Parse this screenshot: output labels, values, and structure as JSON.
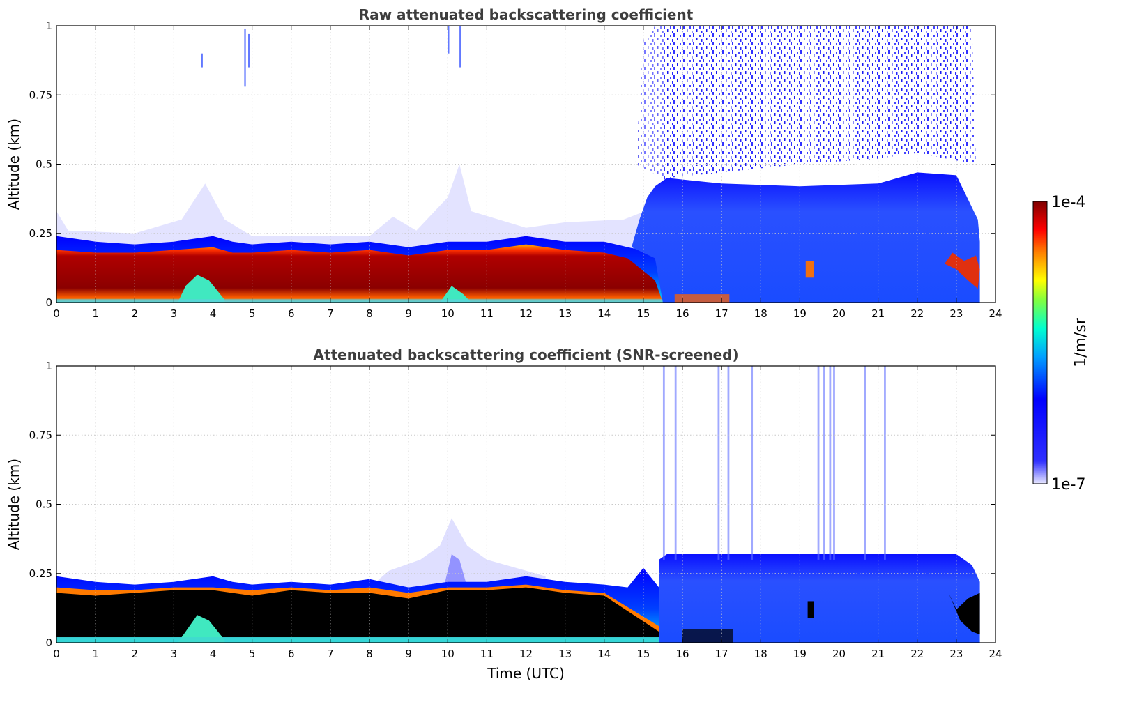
{
  "chart_data": [
    {
      "type": "heatmap",
      "title": "Raw attenuated backscattering coefficient",
      "xlabel": "",
      "ylabel": "Altitude (km)",
      "xlim": [
        0,
        24
      ],
      "ylim": [
        0,
        1
      ],
      "x_ticks": [
        "0",
        "1",
        "2",
        "3",
        "4",
        "5",
        "6",
        "7",
        "8",
        "9",
        "10",
        "11",
        "12",
        "13",
        "14",
        "15",
        "16",
        "17",
        "18",
        "19",
        "20",
        "21",
        "22",
        "23",
        "24"
      ],
      "y_ticks": [
        "0",
        "0.25",
        "0.5",
        "0.75",
        "1"
      ],
      "grid": true,
      "colorscale": "jet",
      "approximate_layers": [
        {
          "from_h": 0,
          "to_h": 15.5,
          "altitude_km": [
            0.0,
            0.18
          ],
          "level": "high (dark red / red)"
        },
        {
          "from_h": 0,
          "to_h": 15.5,
          "altitude_km": [
            0.18,
            0.23
          ],
          "level": "medium (blue / cyan)"
        },
        {
          "from_h": 15.5,
          "to_h": 23.6,
          "altitude_km": [
            0.0,
            0.45
          ],
          "level": "low (blue)"
        },
        {
          "from_h": 15.5,
          "to_h": 23.6,
          "altitude_km": [
            0.45,
            1.0
          ],
          "level": "noise (sparse blue)"
        },
        {
          "from_h": 22.7,
          "to_h": 23.6,
          "altitude_km": [
            0.05,
            0.18
          ],
          "level": "high (red / orange)"
        }
      ]
    },
    {
      "type": "heatmap",
      "title": "Attenuated backscattering coefficient (SNR-screened)",
      "xlabel": "Time (UTC)",
      "ylabel": "Altitude (km)",
      "xlim": [
        0,
        24
      ],
      "ylim": [
        0,
        1
      ],
      "x_ticks": [
        "0",
        "1",
        "2",
        "3",
        "4",
        "5",
        "6",
        "7",
        "8",
        "9",
        "10",
        "11",
        "12",
        "13",
        "14",
        "15",
        "16",
        "17",
        "18",
        "19",
        "20",
        "21",
        "22",
        "23",
        "24"
      ],
      "y_ticks": [
        "0",
        "0.25",
        "0.5",
        "0.75",
        "1"
      ],
      "grid": true,
      "colorscale": "jet",
      "approximate_layers": [
        {
          "from_h": 0,
          "to_h": 15.4,
          "altitude_km": [
            0.02,
            0.19
          ],
          "level": "screened (black)"
        },
        {
          "from_h": 0,
          "to_h": 15.4,
          "altitude_km": [
            0.19,
            0.24
          ],
          "level": "medium (blue / cyan)"
        },
        {
          "from_h": 15.4,
          "to_h": 23.6,
          "altitude_km": [
            0.0,
            0.32
          ],
          "level": "low (blue)"
        },
        {
          "from_h": 22.8,
          "to_h": 23.6,
          "altitude_km": [
            0.03,
            0.18
          ],
          "level": "screened (black)"
        }
      ]
    }
  ],
  "colorbar": {
    "label": "1/m/sr",
    "min_label": "1e-7",
    "max_label": "1e-4",
    "colors": [
      "#e6e6ff",
      "#0000ff",
      "#00c8ff",
      "#00ff80",
      "#ffff00",
      "#ff8000",
      "#ff0000",
      "#800000"
    ]
  }
}
